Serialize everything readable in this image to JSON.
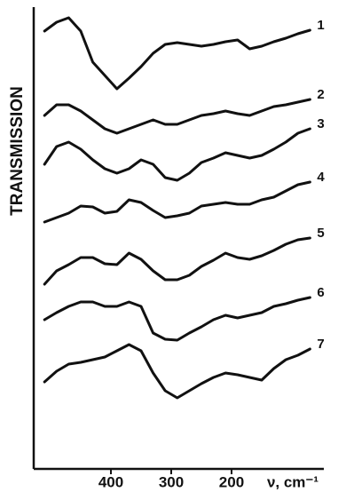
{
  "chart_data": {
    "type": "line",
    "y_label": "TRANSMISSION",
    "x_label": "ν, cm⁻¹",
    "xlim": [
      528,
      47
    ],
    "xticks": [
      400,
      300,
      200
    ],
    "ylim": [
      0,
      520
    ],
    "x": [
      510,
      490,
      470,
      450,
      430,
      410,
      390,
      370,
      350,
      330,
      310,
      290,
      270,
      250,
      230,
      210,
      190,
      170,
      150,
      130,
      110,
      90,
      70
    ],
    "series": [
      {
        "name": "1",
        "color": "#111111",
        "values": [
          493,
          503,
          508,
          493,
          458,
          443,
          428,
          440,
          453,
          468,
          478,
          480,
          478,
          476,
          478,
          481,
          483,
          473,
          476,
          481,
          485,
          490,
          494
        ]
      },
      {
        "name": "2",
        "color": "#111111",
        "values": [
          398,
          410,
          410,
          403,
          393,
          383,
          378,
          383,
          388,
          393,
          388,
          388,
          393,
          398,
          400,
          403,
          400,
          398,
          403,
          408,
          410,
          413,
          416
        ]
      },
      {
        "name": "3",
        "color": "#111111",
        "values": [
          343,
          363,
          368,
          360,
          348,
          338,
          333,
          338,
          348,
          343,
          328,
          325,
          333,
          345,
          350,
          356,
          353,
          350,
          353,
          360,
          368,
          378,
          383
        ]
      },
      {
        "name": "4",
        "color": "#111111",
        "values": [
          278,
          283,
          288,
          296,
          295,
          288,
          290,
          303,
          300,
          291,
          283,
          285,
          288,
          296,
          298,
          300,
          298,
          298,
          303,
          306,
          313,
          320,
          323
        ]
      },
      {
        "name": "5",
        "color": "#111111",
        "values": [
          208,
          223,
          230,
          238,
          238,
          231,
          230,
          243,
          236,
          223,
          213,
          213,
          218,
          228,
          235,
          243,
          238,
          236,
          240,
          246,
          253,
          258,
          260
        ]
      },
      {
        "name": "6",
        "color": "#111111",
        "values": [
          168,
          176,
          183,
          188,
          188,
          183,
          183,
          188,
          183,
          153,
          146,
          145,
          153,
          160,
          168,
          173,
          170,
          173,
          176,
          183,
          186,
          190,
          193
        ]
      },
      {
        "name": "7",
        "color": "#111111",
        "values": [
          98,
          110,
          118,
          120,
          123,
          126,
          133,
          140,
          133,
          108,
          88,
          80,
          88,
          96,
          103,
          108,
          106,
          103,
          100,
          113,
          123,
          128,
          135
        ]
      }
    ]
  }
}
